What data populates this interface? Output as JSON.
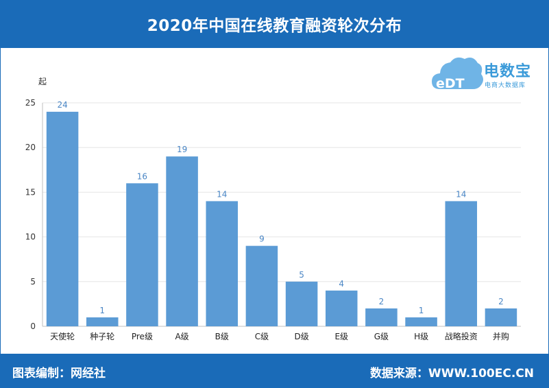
{
  "header": {
    "title": "2020年中国在线教育融资轮次分布"
  },
  "logo": {
    "name": "电数宝",
    "subtitle": "电商大数据库",
    "mark": "eDT"
  },
  "footer": {
    "left": "图表编制：网经社",
    "right": "数据来源：WWW.100EC.CN"
  },
  "colors": {
    "brand": "#1a6bb8",
    "bar": "#5b9bd5",
    "label": "#4a86c5"
  },
  "chart_data": {
    "type": "bar",
    "title": "2020年中国在线教育融资轮次分布",
    "ylabel": "起",
    "xlabel": "",
    "ylim": [
      0,
      25
    ],
    "yticks": [
      0,
      5,
      10,
      15,
      20,
      25
    ],
    "grid": true,
    "categories": [
      "天使轮",
      "种子轮",
      "Pre级",
      "A级",
      "B级",
      "C级",
      "D级",
      "E级",
      "G级",
      "H级",
      "战略投资",
      "并购"
    ],
    "values": [
      24,
      1,
      16,
      19,
      14,
      9,
      5,
      4,
      2,
      1,
      14,
      2
    ]
  }
}
